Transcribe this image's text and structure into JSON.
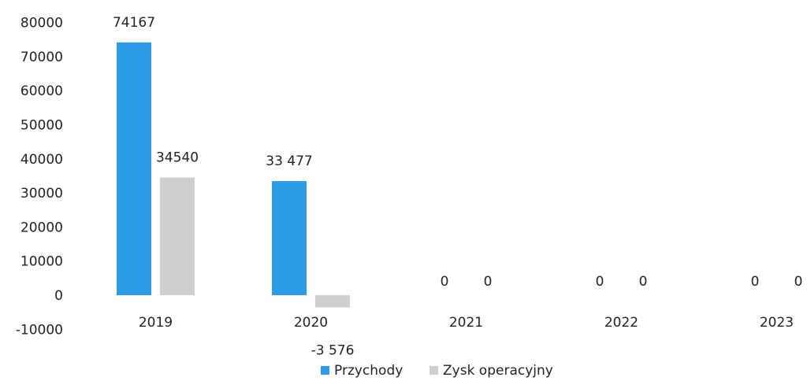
{
  "chart_data": {
    "type": "bar",
    "categories": [
      "2019",
      "2020",
      "2021",
      "2022",
      "2023"
    ],
    "series": [
      {
        "name": "Przychody",
        "values": [
          74167,
          33477,
          0,
          0,
          0
        ],
        "data_labels": [
          "74167",
          "33 477",
          "0",
          "0",
          "0"
        ],
        "color": "#2e9be6"
      },
      {
        "name": "Zysk operacyjny",
        "values": [
          34540,
          -3576,
          0,
          0,
          0
        ],
        "data_labels": [
          "34540",
          "-3 576",
          "0",
          "0",
          "0"
        ],
        "color": "#cfcfcf"
      }
    ],
    "y_ticks": [
      "80000",
      "70000",
      "60000",
      "50000",
      "40000",
      "30000",
      "20000",
      "10000",
      "0",
      "-10000"
    ],
    "ylim": [
      -10000,
      80000
    ],
    "grid": false,
    "legend_position": "bottom"
  }
}
